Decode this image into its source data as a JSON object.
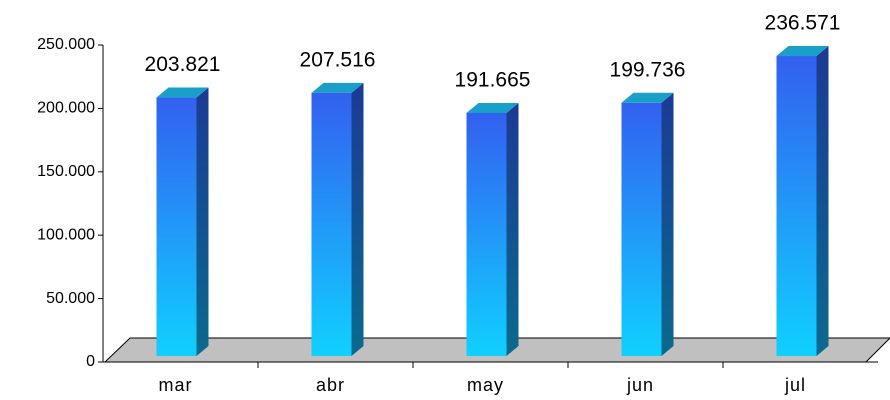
{
  "chart_data": {
    "type": "bar",
    "categories": [
      "mar",
      "abr",
      "may",
      "jun",
      "jul"
    ],
    "values": [
      203821,
      207516,
      191665,
      199736,
      236571
    ],
    "value_labels": [
      "203.821",
      "207.516",
      "191.665",
      "199.736",
      "236.571"
    ],
    "color": "#3360f0",
    "ylim": [
      0,
      250000
    ],
    "yticks": [
      0,
      {
        "value": 50000,
        "label": "50.000"
      },
      {
        "value": 100000,
        "label": "100.000"
      },
      {
        "value": 150000,
        "label": "150.000"
      },
      {
        "value": 200000,
        "label": "200.000"
      },
      {
        "value": 250000,
        "label": "250.000"
      }
    ]
  }
}
